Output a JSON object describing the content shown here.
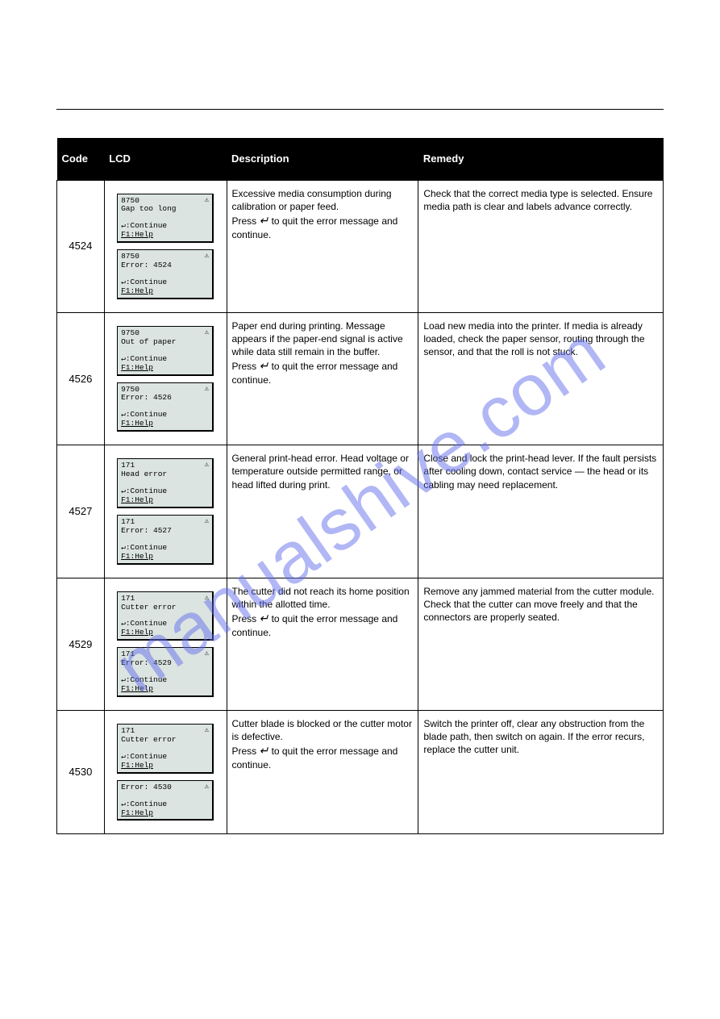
{
  "watermark": "manualshive.com",
  "header_cols": [
    "Code",
    "LCD",
    "Description",
    "Remedy"
  ],
  "rows": [
    {
      "code": "4524",
      "lcd1": {
        "top": "8750",
        "title": "Gap too long",
        "cont": "↵:Continue",
        "help": "F1:Help"
      },
      "lcd2": {
        "top": "8750",
        "title": "Error: 4524",
        "cont": "↵:Continue",
        "help": "F1:Help"
      },
      "desc": "Excessive media consumption during calibration or paper feed.\nPress ↵ to quit the error message and continue.",
      "remedy": "Check that the correct media type is selected. Ensure media path is clear and labels advance correctly."
    },
    {
      "code": "4526",
      "lcd1": {
        "top": "9750",
        "title": "Out of paper",
        "cont": "↵:Continue",
        "help": "F1:Help"
      },
      "lcd2": {
        "top": "9750",
        "title": "Error: 4526",
        "cont": "↵:Continue",
        "help": "F1:Help"
      },
      "desc": "Paper end during printing. Message appears if the paper-end signal is active while data still remain in the buffer.\nPress ↵ to quit the error message and continue.",
      "remedy": "Load new media into the printer. If media is already loaded, check the paper sensor, routing through the sensor, and that the roll is not stuck."
    },
    {
      "code": "4527",
      "lcd1": {
        "top": "171",
        "title": "Head error",
        "cont": "↵:Continue",
        "help": "F1:Help"
      },
      "lcd2": {
        "top": "171",
        "title": "Error: 4527",
        "cont": "↵:Continue",
        "help": "F1:Help"
      },
      "desc": "General print-head error. Head voltage or temperature outside permitted range, or head lifted during print.",
      "remedy": "Close and lock the print-head lever. If the fault persists after cooling down, contact service — the head or its cabling may need replacement."
    },
    {
      "code": "4529",
      "lcd1": {
        "top": "171",
        "title": "Cutter error",
        "cont": "↵:Continue",
        "help": "F1:Help"
      },
      "lcd2": {
        "top": "171",
        "title": "Error: 4529",
        "cont": "↵:Continue",
        "help": "F1:Help"
      },
      "desc": "The cutter did not reach its home position within the allotted time.\nPress ↵ to quit the error message and continue.",
      "remedy": "Remove any jammed material from the cutter module. Check that the cutter can move freely and that the connectors are properly seated."
    },
    {
      "code": "4530",
      "lcd1": {
        "top": "171",
        "title": "Cutter error",
        "cont": "↵:Continue",
        "help": "F1:Help"
      },
      "lcd2": {
        "top": "",
        "title": "Error: 4530",
        "cont": "↵:Continue",
        "help": "F1:Help"
      },
      "desc": "Cutter blade is blocked or the cutter motor is defective.\nPress ↵ to quit the error message and continue.",
      "remedy": "Switch the printer off, clear any obstruction from the blade path, then switch on again. If the error recurs, replace the cutter unit."
    }
  ],
  "colors": {
    "lcd_bg": "#dbe4e0",
    "border": "#000000",
    "watermark": "rgba(100,110,235,0.5)"
  }
}
